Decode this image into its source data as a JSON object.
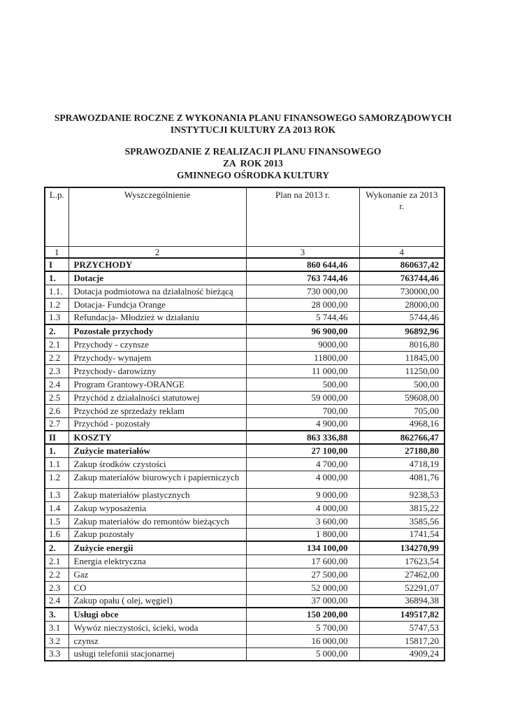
{
  "title": {
    "line1": "SPRAWOZDANIE ROCZNE Z WYKONANIA PLANU FINANSOWEGO SAMORZĄDOWYCH",
    "line2": "INSTYTUCJI KULTURY ZA 2013 ROK"
  },
  "subtitle": {
    "line1": "SPRAWOZDANIE Z REALIZACJI PLANU FINANSOWEGO",
    "line2": "ZA  ROK 2013",
    "line3": "GMINNEGO OŚRODKA KULTURY"
  },
  "table": {
    "headers": {
      "lp": "L.p.",
      "name": "Wyszczególnienie",
      "plan": "Plan na 2013 r.",
      "wykonanie": "Wykonanie za 2013 r."
    },
    "column_numbers": [
      "1",
      "2",
      "3",
      "4"
    ],
    "rows": [
      {
        "lp": "I",
        "name": "PRZYCHODY",
        "plan": "860 644,46",
        "wykonanie": "860637,42",
        "bold": true,
        "tall": false
      },
      {
        "lp": "1.",
        "name": "Dotacje",
        "plan": "763 744,46",
        "wykonanie": "763744,46",
        "bold": true,
        "tall": false
      },
      {
        "lp": "1.1.",
        "name": "Dotacja podmiotowa na działalność bieżącą",
        "plan": "730 000,00",
        "wykonanie": "730000,00",
        "bold": false,
        "tall": false
      },
      {
        "lp": "1.2",
        "name": "Dotacja- Fundcja Orange",
        "plan": "28 000,00",
        "wykonanie": "28000,00",
        "bold": false,
        "tall": false
      },
      {
        "lp": "1.3",
        "name": "Refundacja- Młodzież w działaniu",
        "plan": "5 744,46",
        "wykonanie": "5744,46",
        "bold": false,
        "tall": false
      },
      {
        "lp": "2.",
        "name": "Pozostałe przychody",
        "plan": "96 900,00",
        "wykonanie": "96892,96",
        "bold": true,
        "tall": false
      },
      {
        "lp": "2.1",
        "name": "Przychody - czynsze",
        "plan": "9000,00",
        "wykonanie": "8016,80",
        "bold": false,
        "tall": false
      },
      {
        "lp": "2.2",
        "name": "Przychody- wynajem",
        "plan": "11800,00",
        "wykonanie": "11845,00",
        "bold": false,
        "tall": false
      },
      {
        "lp": "2.3",
        "name": "Przychody- darowizny",
        "plan": "11 000,00",
        "wykonanie": "11250,00",
        "bold": false,
        "tall": false
      },
      {
        "lp": "2.4",
        "name": "Program Grantowy-ORANGE",
        "plan": "500,00",
        "wykonanie": "500,00",
        "bold": false,
        "tall": false
      },
      {
        "lp": "2.5",
        "name": "Przychód z działalności statutowej",
        "plan": "59 000,00",
        "wykonanie": "59608,00",
        "bold": false,
        "tall": false
      },
      {
        "lp": "2.6",
        "name": "Przychód ze sprzedaży reklam",
        "plan": "700,00",
        "wykonanie": "705,00",
        "bold": false,
        "tall": false
      },
      {
        "lp": "2.7",
        "name": "Przychód - pozostały",
        "plan": "4 900,00",
        "wykonanie": "4968,16",
        "bold": false,
        "tall": false
      },
      {
        "lp": "II",
        "name": "KOSZTY",
        "plan": "863 336,88",
        "wykonanie": "862766,47",
        "bold": true,
        "tall": false
      },
      {
        "lp": "1.",
        "name": "Zużycie materiałów",
        "plan": "27 100,00",
        "wykonanie": "27180,80",
        "bold": true,
        "tall": false
      },
      {
        "lp": "1.1",
        "name": "Zakup środków czystości",
        "plan": "4 700,00",
        "wykonanie": "4718,19",
        "bold": false,
        "tall": false
      },
      {
        "lp": "1.2",
        "name": "Zakup materiałów biurowych i papierniczych",
        "plan": "4 000,00",
        "wykonanie": "4081,76",
        "bold": false,
        "tall": true
      },
      {
        "lp": "1.3",
        "name": "Zakup materiałów plastycznych",
        "plan": "9 000,00",
        "wykonanie": "9238,53",
        "bold": false,
        "tall": false
      },
      {
        "lp": "1.4",
        "name": "Zakup wyposażenia",
        "plan": "4 000,00",
        "wykonanie": "3815,22",
        "bold": false,
        "tall": false
      },
      {
        "lp": "1.5",
        "name": "Zakup materiałów do remontów bieżących",
        "plan": "3 600,00",
        "wykonanie": "3585,56",
        "bold": false,
        "tall": false
      },
      {
        "lp": "1.6",
        "name": "Zakup pozostały",
        "plan": "1 800,00",
        "wykonanie": "1741,54",
        "bold": false,
        "tall": false
      },
      {
        "lp": "2.",
        "name": "Zużycie energii",
        "plan": "134 100,00",
        "wykonanie": "134270,99",
        "bold": true,
        "tall": false
      },
      {
        "lp": "2.1",
        "name": "Energia elektryczna",
        "plan": "17 600,00",
        "wykonanie": "17623,54",
        "bold": false,
        "tall": false
      },
      {
        "lp": "2.2",
        "name": "Gaz",
        "plan": "27 500,00",
        "wykonanie": "27462,00",
        "bold": false,
        "tall": false
      },
      {
        "lp": "2.3",
        "name": "CO",
        "plan": "52 000,00",
        "wykonanie": "52291,07",
        "bold": false,
        "tall": false
      },
      {
        "lp": "2.4",
        "name": "Zakup opału ( olej, węgiel)",
        "plan": "37 000,00",
        "wykonanie": "36894,38",
        "bold": false,
        "tall": false
      },
      {
        "lp": "3.",
        "name": "Usługi obce",
        "plan": "150 200,00",
        "wykonanie": "149517,82",
        "bold": true,
        "tall": false
      },
      {
        "lp": "3.1",
        "name": "Wywóz nieczystości, ścieki, woda",
        "plan": "5 700,00",
        "wykonanie": "5747,53",
        "bold": false,
        "tall": false
      },
      {
        "lp": "3.2",
        "name": "czynsz",
        "plan": "16 000,00",
        "wykonanie": "15817,20",
        "bold": false,
        "tall": false
      },
      {
        "lp": "3.3",
        "name": "usługi telefonii stacjonarnej",
        "plan": "5 000,00",
        "wykonanie": "4909,24",
        "bold": false,
        "tall": false
      }
    ]
  }
}
